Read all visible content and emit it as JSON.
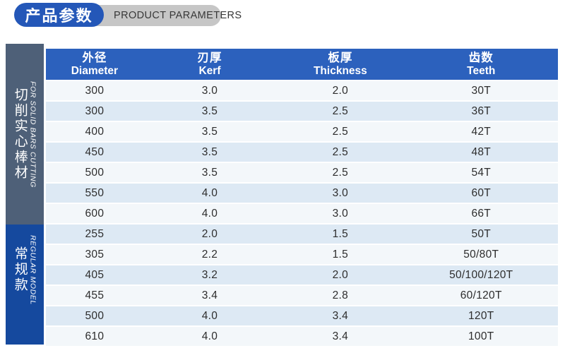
{
  "title": {
    "zh": "产品参数",
    "en": "PRODUCT PARAMETERS"
  },
  "colors": {
    "title_pill_blue": "#2457b8",
    "title_pill_gray": "#c6c6c6",
    "header_blue": "#2c61bd",
    "row_light": "#f3f7fa",
    "row_blue": "#dde9f4",
    "sidebar_solid_bars": "#4e6078",
    "sidebar_regular": "#15499e"
  },
  "table": {
    "columns": [
      {
        "zh": "外径",
        "en": "Diameter"
      },
      {
        "zh": "刃厚",
        "en": "Kerf"
      },
      {
        "zh": "板厚",
        "en": "Thickness"
      },
      {
        "zh": "齿数",
        "en": "Teeth"
      }
    ],
    "groups": [
      {
        "label_zh": "切削实心棒材",
        "label_en": "FOR SOLID BARS CUTTING"
      },
      {
        "label_zh": "常规款",
        "label_en": "REGULAR MODEL"
      }
    ],
    "rows": [
      {
        "diameter": "300",
        "kerf": "3.0",
        "thickness": "2.0",
        "teeth": "30T"
      },
      {
        "diameter": "300",
        "kerf": "3.5",
        "thickness": "2.5",
        "teeth": "36T"
      },
      {
        "diameter": "400",
        "kerf": "3.5",
        "thickness": "2.5",
        "teeth": "42T"
      },
      {
        "diameter": "450",
        "kerf": "3.5",
        "thickness": "2.5",
        "teeth": "48T"
      },
      {
        "diameter": "500",
        "kerf": "3.5",
        "thickness": "2.5",
        "teeth": "54T"
      },
      {
        "diameter": "550",
        "kerf": "4.0",
        "thickness": "3.0",
        "teeth": "60T"
      },
      {
        "diameter": "600",
        "kerf": "4.0",
        "thickness": "3.0",
        "teeth": "66T"
      },
      {
        "diameter": "255",
        "kerf": "2.0",
        "thickness": "1.5",
        "teeth": "50T"
      },
      {
        "diameter": "305",
        "kerf": "2.2",
        "thickness": "1.5",
        "teeth": "50/80T"
      },
      {
        "diameter": "405",
        "kerf": "3.2",
        "thickness": "2.0",
        "teeth": "50/100/120T"
      },
      {
        "diameter": "455",
        "kerf": "3.4",
        "thickness": "2.8",
        "teeth": "60/120T"
      },
      {
        "diameter": "500",
        "kerf": "4.0",
        "thickness": "3.4",
        "teeth": "120T"
      },
      {
        "diameter": "610",
        "kerf": "4.0",
        "thickness": "3.4",
        "teeth": "100T"
      }
    ]
  }
}
